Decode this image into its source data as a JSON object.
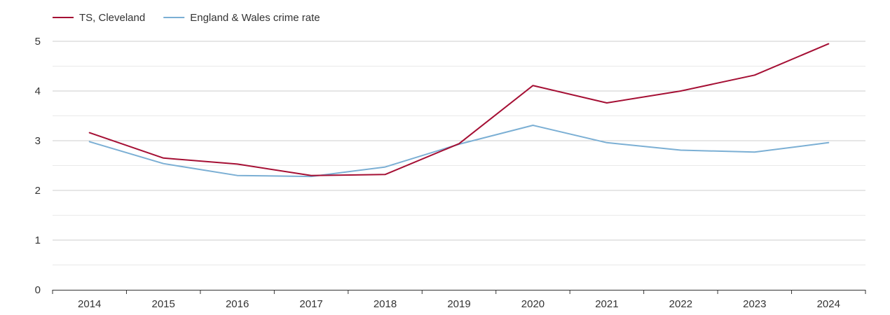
{
  "chart_data": {
    "type": "line",
    "title": "",
    "xlabel": "",
    "ylabel": "",
    "categories": [
      "2014",
      "2015",
      "2016",
      "2017",
      "2018",
      "2019",
      "2020",
      "2021",
      "2022",
      "2023",
      "2024"
    ],
    "ylim": [
      0,
      5
    ],
    "yticks": [
      "0",
      "1",
      "2",
      "3",
      "4",
      "5"
    ],
    "grid": true,
    "legend_position": "top-left",
    "series": [
      {
        "name": "TS, Cleveland",
        "color": "#a50f34",
        "values": [
          3.16,
          2.65,
          2.53,
          2.3,
          2.32,
          2.94,
          4.11,
          3.76,
          4.0,
          4.32,
          4.95
        ]
      },
      {
        "name": "England & Wales crime rate",
        "color": "#7bafd4",
        "values": [
          2.98,
          2.54,
          2.3,
          2.28,
          2.47,
          2.93,
          3.31,
          2.96,
          2.81,
          2.77,
          2.96
        ]
      }
    ]
  }
}
